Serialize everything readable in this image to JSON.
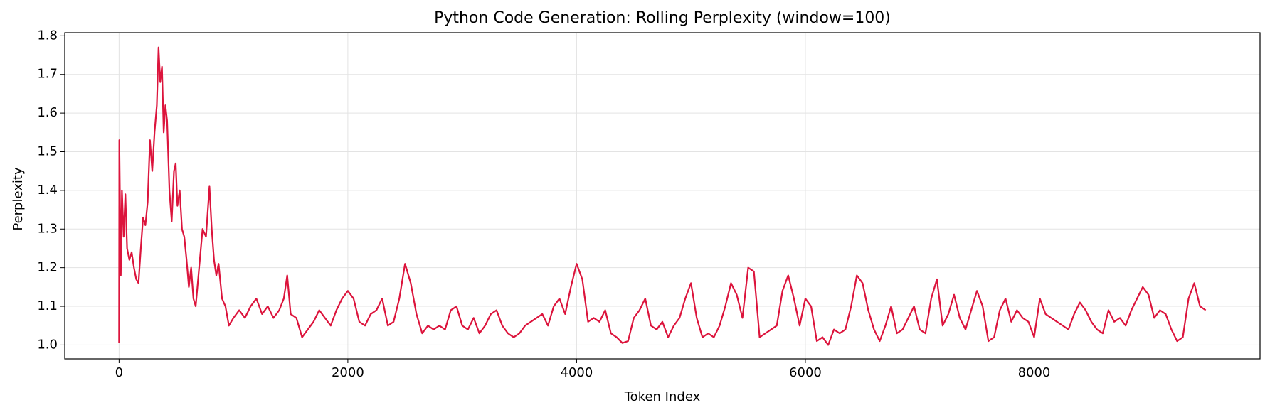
{
  "chart_data": {
    "type": "line",
    "title": "Python Code Generation: Rolling Perplexity (window=100)",
    "x_label": "Token Index",
    "y_label": "Perplexity",
    "xlim": [
      -475,
      9975
    ],
    "ylim": [
      0.964,
      1.808
    ],
    "xticks": [
      0,
      2000,
      4000,
      6000,
      8000
    ],
    "yticks": [
      {
        "value": 1,
        "label": "1.0"
      },
      1.1,
      1.2,
      1.3,
      1.4,
      1.5,
      1.6,
      1.7,
      1.8
    ],
    "grid": true,
    "series": [
      {
        "color": "#dc143c",
        "x": [
          0,
          2,
          15,
          25,
          40,
          55,
          70,
          90,
          110,
          130,
          150,
          170,
          190,
          210,
          230,
          250,
          270,
          290,
          310,
          330,
          345,
          360,
          375,
          390,
          405,
          420,
          440,
          460,
          480,
          495,
          510,
          530,
          550,
          570,
          590,
          610,
          630,
          650,
          670,
          700,
          730,
          760,
          790,
          810,
          830,
          850,
          870,
          900,
          930,
          960,
          1000,
          1050,
          1100,
          1150,
          1200,
          1250,
          1300,
          1350,
          1400,
          1440,
          1470,
          1500,
          1550,
          1600,
          1650,
          1700,
          1750,
          1800,
          1850,
          1900,
          1950,
          2000,
          2050,
          2100,
          2150,
          2200,
          2250,
          2300,
          2350,
          2400,
          2450,
          2500,
          2550,
          2600,
          2650,
          2700,
          2750,
          2800,
          2850,
          2900,
          2950,
          3000,
          3050,
          3100,
          3150,
          3200,
          3250,
          3300,
          3350,
          3400,
          3450,
          3500,
          3550,
          3600,
          3650,
          3700,
          3750,
          3800,
          3850,
          3900,
          3950,
          4000,
          4050,
          4100,
          4150,
          4200,
          4250,
          4300,
          4350,
          4400,
          4450,
          4500,
          4550,
          4600,
          4650,
          4700,
          4750,
          4800,
          4850,
          4900,
          4950,
          5000,
          5050,
          5100,
          5150,
          5200,
          5250,
          5300,
          5350,
          5400,
          5450,
          5500,
          5550,
          5600,
          5650,
          5700,
          5750,
          5800,
          5850,
          5900,
          5950,
          6000,
          6050,
          6100,
          6150,
          6200,
          6250,
          6300,
          6350,
          6400,
          6450,
          6500,
          6550,
          6600,
          6650,
          6700,
          6750,
          6800,
          6850,
          6900,
          6950,
          7000,
          7050,
          7100,
          7150,
          7200,
          7250,
          7300,
          7350,
          7400,
          7450,
          7500,
          7550,
          7600,
          7650,
          7700,
          7750,
          7800,
          7850,
          7900,
          7950,
          8000,
          8050,
          8100,
          8150,
          8200,
          8250,
          8300,
          8350,
          8400,
          8450,
          8500,
          8550,
          8600,
          8650,
          8700,
          8750,
          8800,
          8850,
          8900,
          8950,
          9000,
          9050,
          9100,
          9150,
          9200,
          9250,
          9300,
          9350,
          9400,
          9450,
          9500
        ],
        "values": [
          1.005,
          1.53,
          1.18,
          1.4,
          1.28,
          1.39,
          1.25,
          1.22,
          1.24,
          1.2,
          1.17,
          1.16,
          1.25,
          1.33,
          1.31,
          1.37,
          1.53,
          1.45,
          1.55,
          1.62,
          1.77,
          1.68,
          1.72,
          1.55,
          1.62,
          1.58,
          1.4,
          1.32,
          1.45,
          1.47,
          1.36,
          1.4,
          1.3,
          1.28,
          1.22,
          1.15,
          1.2,
          1.12,
          1.1,
          1.2,
          1.3,
          1.28,
          1.41,
          1.3,
          1.22,
          1.18,
          1.21,
          1.12,
          1.1,
          1.05,
          1.07,
          1.09,
          1.07,
          1.1,
          1.12,
          1.08,
          1.1,
          1.07,
          1.09,
          1.12,
          1.18,
          1.08,
          1.07,
          1.02,
          1.04,
          1.06,
          1.09,
          1.07,
          1.05,
          1.09,
          1.12,
          1.14,
          1.12,
          1.06,
          1.05,
          1.08,
          1.09,
          1.12,
          1.05,
          1.06,
          1.12,
          1.21,
          1.16,
          1.08,
          1.03,
          1.05,
          1.04,
          1.05,
          1.04,
          1.09,
          1.1,
          1.05,
          1.04,
          1.07,
          1.03,
          1.05,
          1.08,
          1.09,
          1.05,
          1.03,
          1.02,
          1.03,
          1.05,
          1.06,
          1.07,
          1.08,
          1.05,
          1.1,
          1.12,
          1.08,
          1.15,
          1.21,
          1.17,
          1.06,
          1.07,
          1.06,
          1.09,
          1.03,
          1.02,
          1.005,
          1.01,
          1.07,
          1.09,
          1.12,
          1.05,
          1.04,
          1.06,
          1.02,
          1.05,
          1.07,
          1.12,
          1.16,
          1.07,
          1.02,
          1.03,
          1.02,
          1.05,
          1.1,
          1.16,
          1.13,
          1.07,
          1.2,
          1.19,
          1.02,
          1.03,
          1.04,
          1.05,
          1.14,
          1.18,
          1.12,
          1.05,
          1.12,
          1.1,
          1.01,
          1.02,
          1.0,
          1.04,
          1.03,
          1.04,
          1.1,
          1.18,
          1.16,
          1.09,
          1.04,
          1.01,
          1.05,
          1.1,
          1.03,
          1.04,
          1.07,
          1.1,
          1.04,
          1.03,
          1.12,
          1.17,
          1.05,
          1.08,
          1.13,
          1.07,
          1.04,
          1.09,
          1.14,
          1.1,
          1.01,
          1.02,
          1.09,
          1.12,
          1.06,
          1.09,
          1.07,
          1.06,
          1.02,
          1.12,
          1.08,
          1.07,
          1.06,
          1.05,
          1.04,
          1.08,
          1.11,
          1.09,
          1.06,
          1.04,
          1.03,
          1.09,
          1.06,
          1.07,
          1.05,
          1.09,
          1.12,
          1.15,
          1.13,
          1.07,
          1.09,
          1.08,
          1.04,
          1.01,
          1.02,
          1.12,
          1.16,
          1.1,
          1.09
        ]
      }
    ]
  }
}
